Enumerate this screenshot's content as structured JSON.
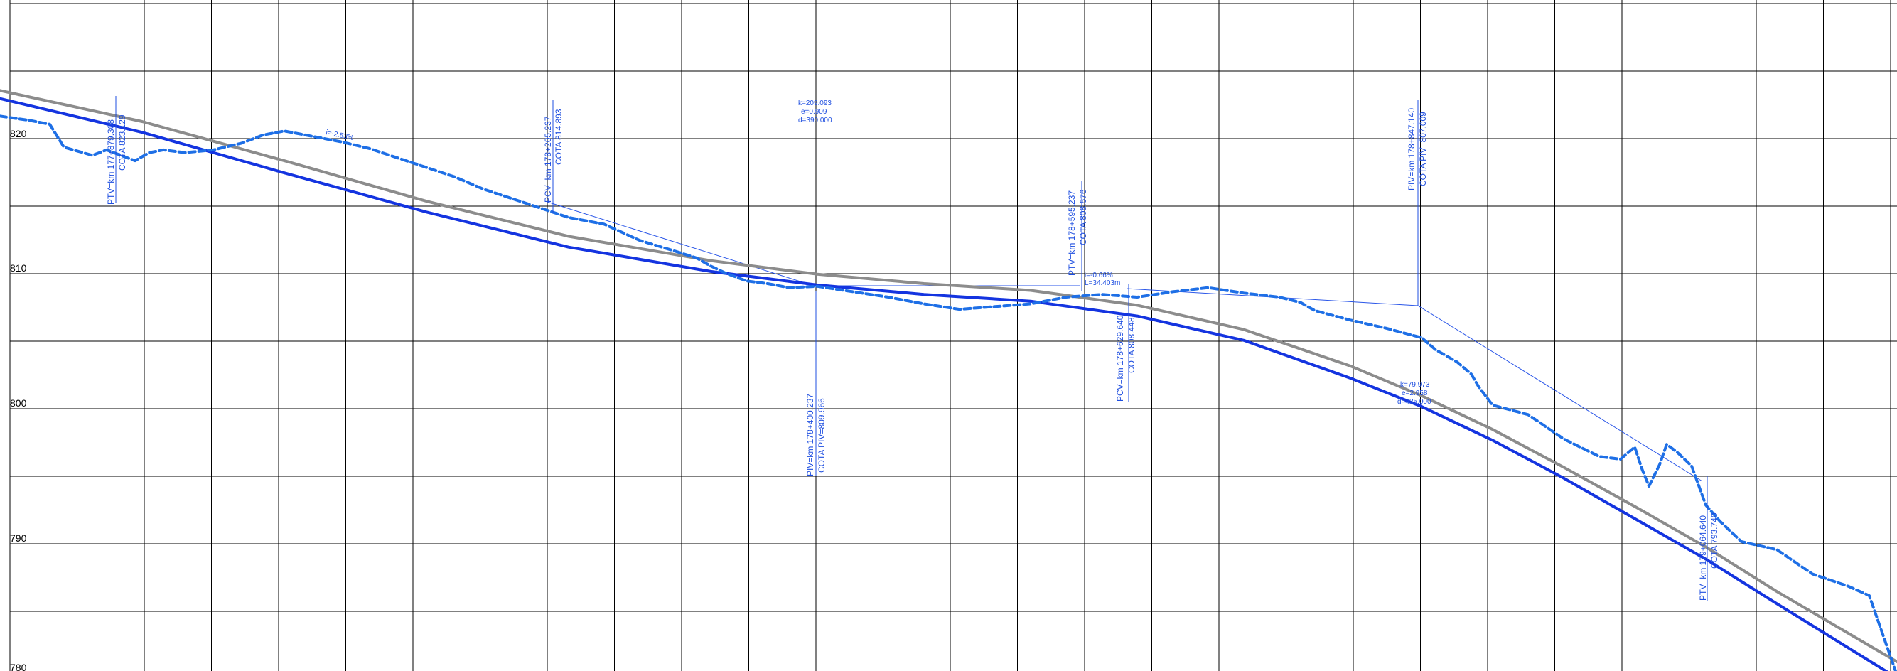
{
  "chart_data": {
    "type": "line",
    "y_ticks": [
      "820",
      "810",
      "800",
      "790",
      "780"
    ],
    "ylim": [
      780,
      825
    ],
    "grid": true,
    "colors": {
      "terrain": "#1e6fe6",
      "design": "#1434e0",
      "reference": "#8c8c8c",
      "annotation": "#1f4fe0"
    },
    "series": [
      {
        "style": "design-grade",
        "x": [
          0,
          200,
          400,
          600,
          800,
          1000,
          1150,
          1300,
          1450,
          1600,
          1750,
          1900,
          2000,
          2100,
          2200,
          2300,
          2400,
          2500,
          2669
        ],
        "y": [
          822.7,
          820.2,
          817.2,
          814.3,
          811.7,
          809.9,
          808.9,
          808.2,
          807.7,
          806.6,
          804.8,
          802.0,
          799.9,
          797.4,
          794.6,
          791.6,
          788.6,
          785.3,
          779.8
        ]
      },
      {
        "style": "reference-grade",
        "x": [
          0,
          200,
          400,
          600,
          800,
          1000,
          1150,
          1300,
          1450,
          1600,
          1750,
          1900,
          2000,
          2100,
          2200,
          2300,
          2400,
          2500,
          2669
        ],
        "y": [
          823.3,
          821.0,
          818.1,
          815.1,
          812.5,
          810.7,
          809.7,
          809.0,
          808.5,
          807.4,
          805.6,
          802.9,
          800.7,
          798.2,
          795.4,
          792.5,
          789.5,
          786.2,
          781.0
        ]
      },
      {
        "style": "terrain",
        "x": [
          0,
          40,
          70,
          90,
          110,
          130,
          150,
          170,
          190,
          210,
          230,
          260,
          300,
          340,
          370,
          400,
          440,
          480,
          520,
          560,
          600,
          640,
          680,
          720,
          760,
          800,
          850,
          900,
          950,
          980,
          1000,
          1020,
          1050,
          1080,
          1110,
          1150,
          1200,
          1250,
          1300,
          1350,
          1400,
          1450,
          1500,
          1550,
          1600,
          1650,
          1700,
          1750,
          1800,
          1830,
          1850,
          1900,
          1950,
          2000,
          2020,
          2050,
          2070,
          2080,
          2100,
          2150,
          2200,
          2250,
          2280,
          2300,
          2310,
          2320,
          2335,
          2345,
          2360,
          2380,
          2400,
          2420,
          2450,
          2500,
          2550,
          2600,
          2630,
          2669
        ],
        "y": [
          821.4,
          821.1,
          820.8,
          819.1,
          818.8,
          818.5,
          818.9,
          818.5,
          818.1,
          818.7,
          818.9,
          818.7,
          818.9,
          819.4,
          820.0,
          820.3,
          819.9,
          819.5,
          819.0,
          818.3,
          817.6,
          816.9,
          816.0,
          815.3,
          814.6,
          813.9,
          813.4,
          812.2,
          811.4,
          810.9,
          810.3,
          809.8,
          809.2,
          809.0,
          808.7,
          808.8,
          808.4,
          808.0,
          807.5,
          807.1,
          807.3,
          807.5,
          808.0,
          808.2,
          808.0,
          808.4,
          808.7,
          808.3,
          808.0,
          807.6,
          807.0,
          806.3,
          805.7,
          805.0,
          804.1,
          803.2,
          802.3,
          801.4,
          800.0,
          799.3,
          797.5,
          796.2,
          796.0,
          796.9,
          795.3,
          794.0,
          795.6,
          797.1,
          796.5,
          795.5,
          792.6,
          791.4,
          789.9,
          789.3,
          787.5,
          786.6,
          785.9,
          780.0
        ]
      }
    ],
    "annotations": [
      {
        "id": "ptv-1",
        "lines": [
          "PTV=km 177+879.308",
          "COTA 823.129"
        ],
        "x": 155,
        "y": 822.9
      },
      {
        "id": "pcv-1",
        "lines": [
          "PCV=km 178+205.237",
          "COTA 814.893"
        ],
        "x": 770,
        "y": 813.0
      },
      {
        "id": "piv-1",
        "lines": [
          "PIV=km 178+400.237",
          "COTA PIV=809.966"
        ],
        "x": 1145,
        "y": 810.0
      },
      {
        "id": "ptv-2",
        "lines": [
          "PTV=km 178+595.237",
          "COTA 808.676"
        ],
        "x": 1520,
        "y": 808.4
      },
      {
        "id": "pcv-2",
        "lines": [
          "PCV=km 178+629.640",
          "COTA 808.448"
        ],
        "x": 1585,
        "y": 808.2
      },
      {
        "id": "piv-2",
        "lines": [
          "PIV=km 178+847.140",
          "COTA PIV=807.009"
        ],
        "x": 1995,
        "y": 807.0
      },
      {
        "id": "ptv-3",
        "lines": [
          "PTV=km 179+064.640",
          "COTA 793.740"
        ],
        "x": 2395,
        "y": 793.7
      }
    ],
    "curve_params": [
      {
        "id": "curve-1",
        "lines": [
          "k=209.093",
          "e=0.909",
          "d=390.000"
        ]
      },
      {
        "id": "curve-2",
        "lines": [
          "k=79.973",
          "e=2.958",
          "d=435.000"
        ]
      }
    ],
    "grades": [
      {
        "id": "grade-1",
        "text": "i=-2.53%"
      },
      {
        "id": "grade-2",
        "text": "i=-0.66%"
      },
      {
        "id": "grade-3",
        "text": "L=34.403m"
      }
    ]
  }
}
